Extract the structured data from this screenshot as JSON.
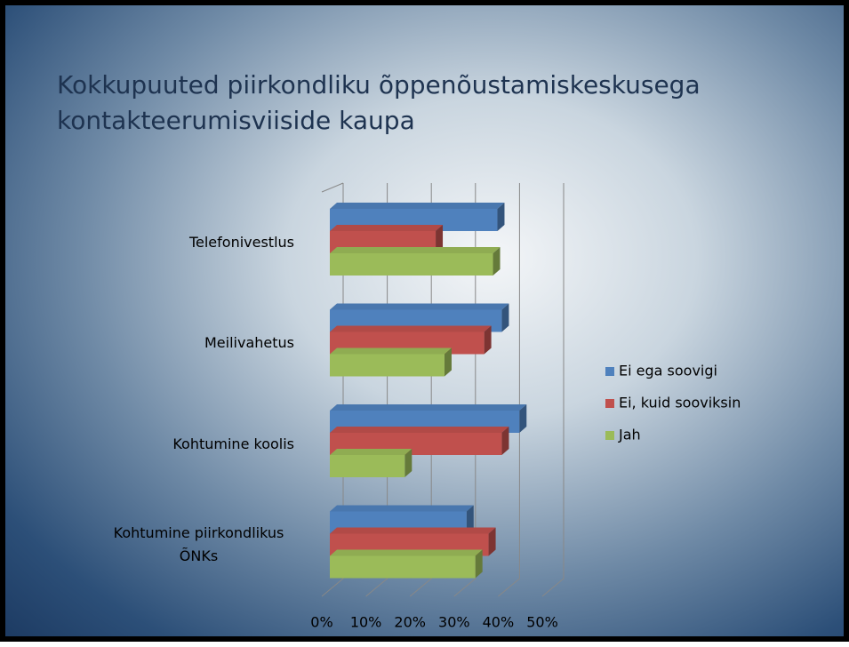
{
  "chart_data": {
    "type": "bar3d_horizontal",
    "title": "Kokkupuuted piirkondliku õppenõustamiskeskusega kontakteerumisviiside kaupa",
    "categories": [
      "Telefonivestlus",
      "Meilivahetus",
      "Kohtumine koolis",
      "Kohtumine piirkondlikus ÕNKs"
    ],
    "series": [
      {
        "name": "Ei ega soovigi",
        "color": "#4f81bd",
        "values": [
          38,
          39,
          43,
          31
        ]
      },
      {
        "name": "Ei, kuid sooviksin",
        "color": "#c0504d",
        "values": [
          24,
          35,
          39,
          36
        ]
      },
      {
        "name": "Jah",
        "color": "#9bbb59",
        "values": [
          37,
          26,
          17,
          33
        ]
      }
    ],
    "xlim": [
      0,
      50
    ],
    "xticks": [
      {
        "value": 0,
        "label": "0%"
      },
      {
        "value": 10,
        "label": "10%"
      },
      {
        "value": 20,
        "label": "20%"
      },
      {
        "value": 30,
        "label": "30%"
      },
      {
        "value": 40,
        "label": "40%"
      },
      {
        "value": 50,
        "label": "50%"
      }
    ],
    "grid": true,
    "legend": "right"
  }
}
